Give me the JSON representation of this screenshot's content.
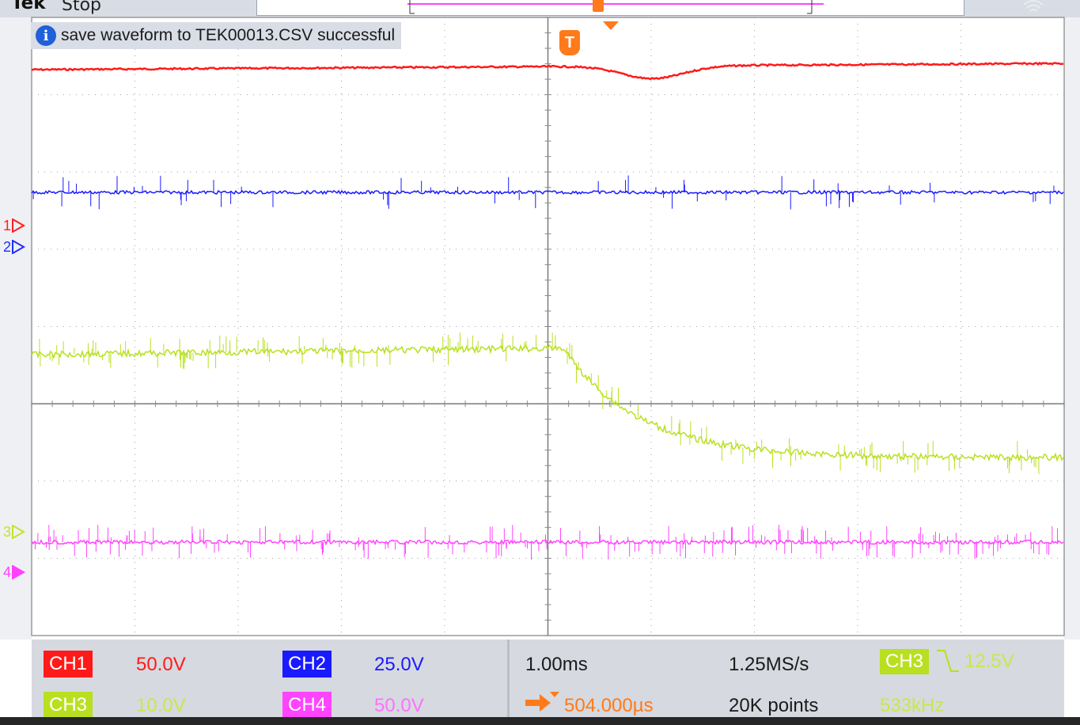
{
  "header": {
    "brand": "Tek",
    "run_state": "Stop"
  },
  "message": {
    "text": "save waveform to TEK00013.CSV successful",
    "icon": "info-icon"
  },
  "trigger": {
    "marker_label": "T"
  },
  "channel_markers": [
    {
      "label": "1",
      "color": "#ff2020"
    },
    {
      "label": "2",
      "color": "#2030ff"
    },
    {
      "label": "3",
      "color": "#c8e030"
    },
    {
      "label": "4",
      "color": "#ff40ff"
    }
  ],
  "channels": {
    "ch1": {
      "name": "CH1",
      "scale": "50.0V",
      "color": "#ff1a1a"
    },
    "ch2": {
      "name": "CH2",
      "scale": "25.0V",
      "color": "#1a1aff"
    },
    "ch3": {
      "name": "CH3",
      "scale": "10.0V",
      "color": "#b8e020"
    },
    "ch4": {
      "name": "CH4",
      "scale": "50.0V",
      "color": "#ff44ff"
    }
  },
  "acquisition": {
    "timebase": "1.00ms",
    "sample_rate": "1.25MS/s",
    "record_length": "20K points",
    "trigger_position": "504.000µs"
  },
  "trigger_settings": {
    "source": "CH3",
    "level": "12.5V",
    "frequency": "533kHz",
    "slope_icon": "falling-edge-icon"
  }
}
